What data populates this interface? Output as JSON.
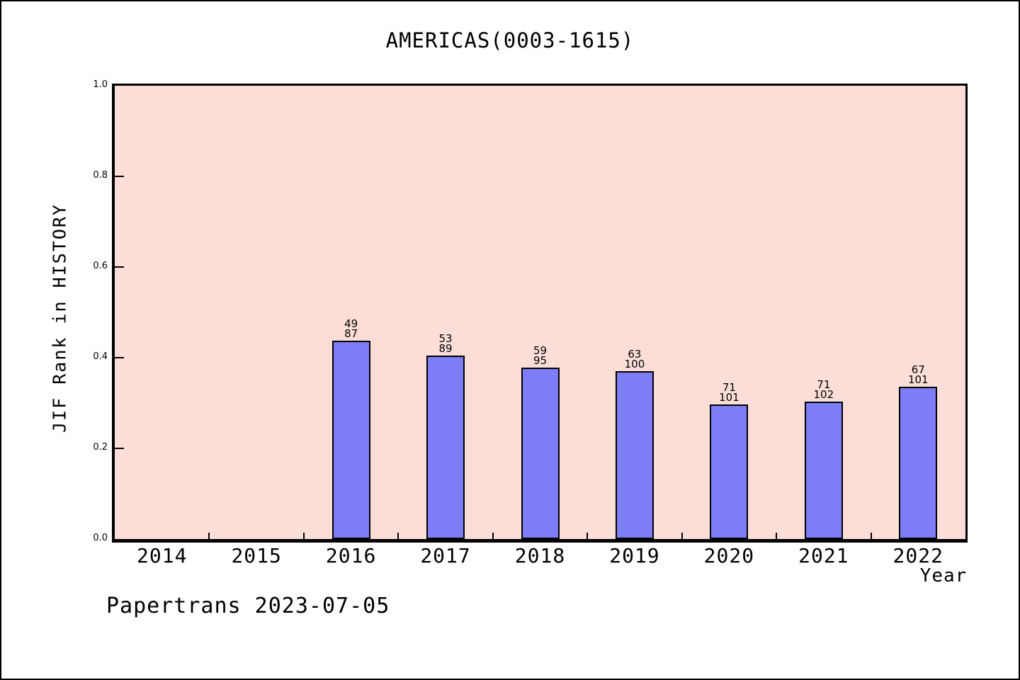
{
  "title": "AMERICAS(0003-1615)",
  "ylabel": "JIF Rank in HISTORY",
  "xlabel": "Year",
  "footer": "Papertrans 2023-07-05",
  "chart_data": {
    "type": "bar",
    "title": "AMERICAS(0003-1615)",
    "xlabel": "Year",
    "ylabel": "JIF Rank in HISTORY",
    "ylim": [
      0.0,
      1.0
    ],
    "ytick_labels": [
      "0.0",
      "0.2",
      "0.4",
      "0.6",
      "0.8",
      "1.0"
    ],
    "ytick_values": [
      0.0,
      0.2,
      0.4,
      0.6,
      0.8,
      1.0
    ],
    "x_range": [
      2013.5,
      2022.5
    ],
    "categories": [
      "2014",
      "2015",
      "2016",
      "2017",
      "2018",
      "2019",
      "2020",
      "2021",
      "2022"
    ],
    "grid": false,
    "legend_position": "none",
    "bars": [
      {
        "year": 2016,
        "rank": 49,
        "total": 87,
        "value": 0.4368
      },
      {
        "year": 2017,
        "rank": 53,
        "total": 89,
        "value": 0.4045
      },
      {
        "year": 2018,
        "rank": 59,
        "total": 95,
        "value": 0.3789
      },
      {
        "year": 2019,
        "rank": 63,
        "total": 100,
        "value": 0.37
      },
      {
        "year": 2020,
        "rank": 71,
        "total": 101,
        "value": 0.297
      },
      {
        "year": 2021,
        "rank": 71,
        "total": 102,
        "value": 0.3039
      },
      {
        "year": 2022,
        "rank": 67,
        "total": 101,
        "value": 0.3366
      }
    ],
    "colors": {
      "plot_bg": "#fcded9",
      "bar_fill": "#7d7df5",
      "bar_border": "#000000",
      "axis": "#000000",
      "text": "#000000"
    }
  }
}
